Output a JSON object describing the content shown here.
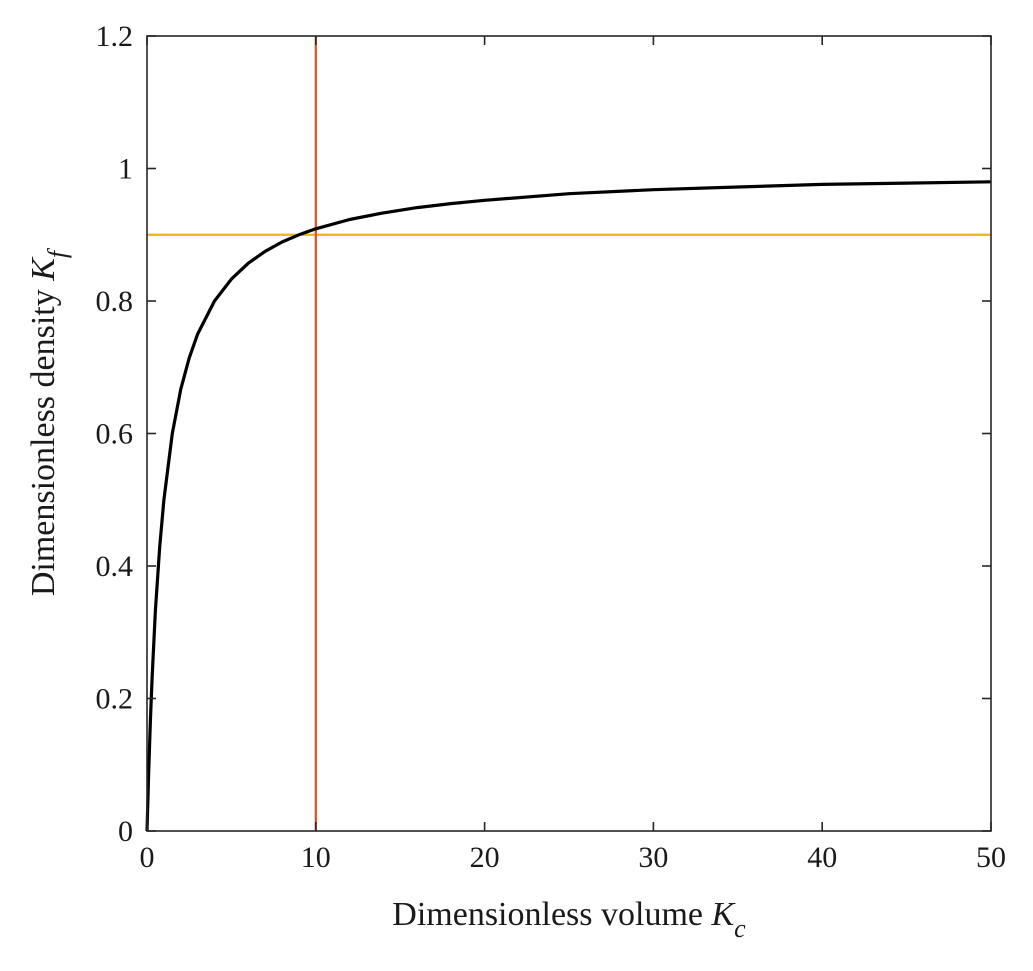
{
  "chart_data": {
    "type": "line",
    "xlabel": {
      "text": "Dimensionless volume ",
      "var": "K",
      "sub": "c"
    },
    "ylabel": {
      "text": "Dimensionless density ",
      "var": "K",
      "sub": "f"
    },
    "xlim": [
      0,
      50
    ],
    "ylim": [
      0,
      1.2
    ],
    "xticks": [
      0,
      10,
      20,
      30,
      40,
      50
    ],
    "xtick_labels": [
      "0",
      "10",
      "20",
      "30",
      "40",
      "50"
    ],
    "yticks": [
      0,
      0.2,
      0.4,
      0.6,
      0.8,
      1.0,
      1.2
    ],
    "ytick_labels": [
      "0",
      "0.2",
      "0.4",
      "0.6",
      "0.8",
      "1",
      "1.2"
    ],
    "grid": false,
    "series": [
      {
        "color": "#000000",
        "x": [
          0,
          0.1,
          0.2,
          0.3,
          0.5,
          0.75,
          1,
          1.5,
          2,
          2.5,
          3,
          4,
          5,
          6,
          7,
          8,
          9,
          10,
          12,
          14,
          16,
          18,
          20,
          25,
          30,
          35,
          40,
          45,
          50
        ],
        "y": [
          0,
          0.09,
          0.167,
          0.231,
          0.333,
          0.429,
          0.5,
          0.6,
          0.667,
          0.714,
          0.75,
          0.8,
          0.833,
          0.857,
          0.875,
          0.889,
          0.9,
          0.909,
          0.923,
          0.933,
          0.941,
          0.947,
          0.952,
          0.962,
          0.968,
          0.972,
          0.976,
          0.978,
          0.98
        ]
      }
    ],
    "reference_lines": [
      {
        "orientation": "horizontal",
        "value": 0.9,
        "color": "#EDB120"
      },
      {
        "orientation": "vertical",
        "value": 10,
        "color": "#D95319"
      }
    ]
  }
}
